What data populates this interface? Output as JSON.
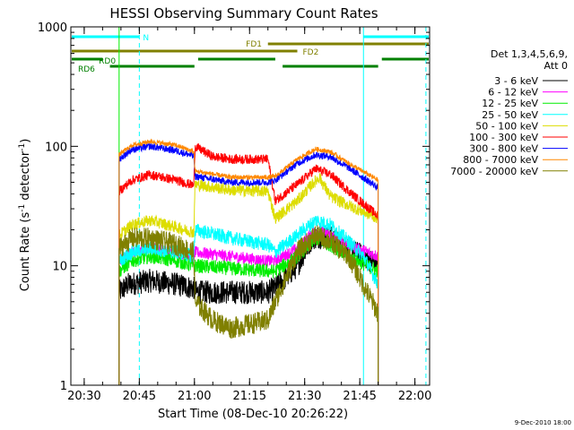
{
  "chart_data": {
    "type": "line",
    "title": "HESSI Observing Summary Count Rates",
    "xlabel": "Start Time (08-Dec-10 20:26:22)",
    "ylabel_main": "Count Rate (s",
    "ylabel_sup1": "-1",
    "ylabel_mid": " detector",
    "ylabel_sup2": "-1",
    "ylabel_end": ")",
    "y_scale": "log",
    "ylim": [
      1,
      1000
    ],
    "xlim": [
      "20:26:22",
      "22:04:00"
    ],
    "x_ticks": [
      "20:30",
      "20:45",
      "21:00",
      "21:15",
      "21:30",
      "21:45",
      "22:00"
    ],
    "y_ticks": [
      "1",
      "10",
      "100",
      "1000"
    ],
    "timestamp": "9-Dec-2010 18:00",
    "legend": {
      "header": "Det 1,3,4,5,6,9,",
      "header2": "Att 0",
      "placement": "right"
    },
    "series": [
      {
        "name": "3 - 6 keV",
        "color": "#000000",
        "noise": 0.1,
        "points": [
          [
            "20:39:30",
            6
          ],
          [
            "20:42",
            7
          ],
          [
            "20:48",
            7.5
          ],
          [
            "20:55",
            7
          ],
          [
            "20:59:50",
            6.5
          ],
          [
            "21:00:10",
            6
          ],
          [
            "21:10",
            6
          ],
          [
            "21:20",
            6
          ],
          [
            "21:22",
            6.5
          ],
          [
            "21:28",
            10
          ],
          [
            "21:32",
            17
          ],
          [
            "21:36",
            18
          ],
          [
            "21:40",
            15
          ],
          [
            "21:46",
            12
          ],
          [
            "21:50",
            10
          ]
        ]
      },
      {
        "name": "6 - 12 keV",
        "color": "#ff00ff",
        "noise": 0.05,
        "points": [
          [
            "20:39:30",
            11
          ],
          [
            "20:43",
            13
          ],
          [
            "20:48",
            14
          ],
          [
            "20:55",
            13
          ],
          [
            "20:59:50",
            12
          ],
          [
            "21:00:10",
            13
          ],
          [
            "21:10",
            12
          ],
          [
            "21:20",
            11
          ],
          [
            "21:22",
            11
          ],
          [
            "21:28",
            14
          ],
          [
            "21:33",
            20
          ],
          [
            "21:37",
            18
          ],
          [
            "21:42",
            15
          ],
          [
            "21:50",
            12
          ]
        ]
      },
      {
        "name": "12 - 25 keV",
        "color": "#00ee00",
        "noise": 0.06,
        "points": [
          [
            "20:39:30",
            9
          ],
          [
            "20:43",
            11
          ],
          [
            "20:48",
            12
          ],
          [
            "20:55",
            11
          ],
          [
            "20:59:50",
            10
          ],
          [
            "21:00:10",
            10
          ],
          [
            "21:10",
            9.5
          ],
          [
            "21:20",
            9
          ],
          [
            "21:22",
            9
          ],
          [
            "21:28",
            12
          ],
          [
            "21:33",
            17
          ],
          [
            "21:37",
            15
          ],
          [
            "21:42",
            12
          ],
          [
            "21:50",
            9
          ]
        ]
      },
      {
        "name": "25 - 50 keV",
        "color": "#00ffff",
        "noise": 0.06,
        "points": [
          [
            "20:39:30",
            11
          ],
          [
            "20:43",
            13
          ],
          [
            "20:48",
            14
          ],
          [
            "20:55",
            13
          ],
          [
            "20:59:50",
            12
          ],
          [
            "21:00:10",
            20
          ],
          [
            "21:10",
            17
          ],
          [
            "21:20",
            15
          ],
          [
            "21:22",
            13
          ],
          [
            "21:28",
            18
          ],
          [
            "21:33",
            24
          ],
          [
            "21:37",
            22
          ],
          [
            "21:42",
            16
          ],
          [
            "21:46",
            12
          ],
          [
            "21:50",
            7
          ]
        ]
      },
      {
        "name": "50 - 100 keV",
        "color": "#dddd00",
        "noise": 0.05,
        "points": [
          [
            "20:39:30",
            18
          ],
          [
            "20:43",
            22
          ],
          [
            "20:48",
            24
          ],
          [
            "20:55",
            21
          ],
          [
            "20:59:50",
            19
          ],
          [
            "21:00:10",
            48
          ],
          [
            "21:10",
            43
          ],
          [
            "21:20",
            42
          ],
          [
            "21:22",
            25
          ],
          [
            "21:28",
            35
          ],
          [
            "21:32",
            48
          ],
          [
            "21:34",
            55
          ],
          [
            "21:37",
            38
          ],
          [
            "21:42",
            32
          ],
          [
            "21:50",
            25
          ]
        ]
      },
      {
        "name": "100 - 300 keV",
        "color": "#ff0000",
        "noise": 0.04,
        "points": [
          [
            "20:39:30",
            42
          ],
          [
            "20:43",
            52
          ],
          [
            "20:48",
            58
          ],
          [
            "20:55",
            52
          ],
          [
            "20:59:50",
            47
          ],
          [
            "21:00:10",
            100
          ],
          [
            "21:05",
            82
          ],
          [
            "21:10",
            78
          ],
          [
            "21:20",
            78
          ],
          [
            "21:22",
            35
          ],
          [
            "21:28",
            48
          ],
          [
            "21:33",
            65
          ],
          [
            "21:37",
            58
          ],
          [
            "21:42",
            42
          ],
          [
            "21:50",
            26
          ]
        ]
      },
      {
        "name": "300 - 800 keV",
        "color": "#0000ff",
        "noise": 0.03,
        "points": [
          [
            "20:39:30",
            78
          ],
          [
            "20:43",
            94
          ],
          [
            "20:48",
            100
          ],
          [
            "20:55",
            92
          ],
          [
            "20:59:50",
            83
          ],
          [
            "21:00:10",
            56
          ],
          [
            "21:10",
            50
          ],
          [
            "21:20",
            50
          ],
          [
            "21:22",
            52
          ],
          [
            "21:28",
            72
          ],
          [
            "21:33",
            85
          ],
          [
            "21:37",
            82
          ],
          [
            "21:42",
            66
          ],
          [
            "21:50",
            45
          ]
        ]
      },
      {
        "name": "800 - 7000 keV",
        "color": "#ff8800",
        "noise": 0.02,
        "points": [
          [
            "20:39:30",
            85
          ],
          [
            "20:43",
            102
          ],
          [
            "20:48",
            110
          ],
          [
            "20:55",
            102
          ],
          [
            "20:59:50",
            90
          ],
          [
            "21:00:10",
            62
          ],
          [
            "21:10",
            55
          ],
          [
            "21:20",
            55
          ],
          [
            "21:22",
            56
          ],
          [
            "21:28",
            78
          ],
          [
            "21:33",
            95
          ],
          [
            "21:37",
            90
          ],
          [
            "21:42",
            72
          ],
          [
            "21:50",
            52
          ]
        ]
      },
      {
        "name": "7000 - 20000 keV",
        "color": "#808000",
        "noise": 0.09,
        "points": [
          [
            "20:39:30",
            14
          ],
          [
            "20:43",
            17
          ],
          [
            "20:48",
            17
          ],
          [
            "20:55",
            15
          ],
          [
            "20:59:50",
            13
          ],
          [
            "21:00:10",
            5
          ],
          [
            "21:05",
            3.5
          ],
          [
            "21:10",
            3
          ],
          [
            "21:20",
            3.5
          ],
          [
            "21:22",
            5
          ],
          [
            "21:28",
            13
          ],
          [
            "21:33",
            18
          ],
          [
            "21:37",
            16
          ],
          [
            "21:42",
            12
          ],
          [
            "21:50",
            4
          ]
        ]
      }
    ],
    "flag_bars": [
      {
        "label": "N",
        "color": "#00ffff",
        "intervals": [
          [
            "20:26:22",
            "20:45"
          ],
          [
            "21:46",
            "22:04"
          ]
        ],
        "level": 0
      },
      {
        "label": "FD1",
        "color": "#808000",
        "intervals": [
          [
            "21:20",
            "22:04"
          ]
        ],
        "level": 1
      },
      {
        "label": "FD2",
        "color": "#808000",
        "intervals": [
          [
            "20:26:22",
            "21:28"
          ]
        ],
        "level": 2
      },
      {
        "label": "RD0",
        "color": "#008000",
        "intervals": [
          [
            "20:26:22",
            "20:35"
          ],
          [
            "21:01",
            "21:22"
          ],
          [
            "21:51",
            "22:04"
          ]
        ],
        "level": 3
      },
      {
        "label": "RD6",
        "color": "#008000",
        "intervals": [
          [
            "20:37",
            "21:00"
          ],
          [
            "21:24",
            "21:50"
          ]
        ],
        "level": 4
      }
    ],
    "vlines": [
      {
        "time": "20:26:22",
        "color": "#00ffff",
        "style": "solid"
      },
      {
        "time": "20:45",
        "color": "#00ffff",
        "style": "dashed"
      },
      {
        "time": "21:46",
        "color": "#00ffff",
        "style": "solid"
      },
      {
        "time": "22:03",
        "color": "#00ffff",
        "style": "dashed"
      },
      {
        "time": "20:39:30",
        "color": "#00ee00",
        "style": "solid"
      }
    ]
  }
}
